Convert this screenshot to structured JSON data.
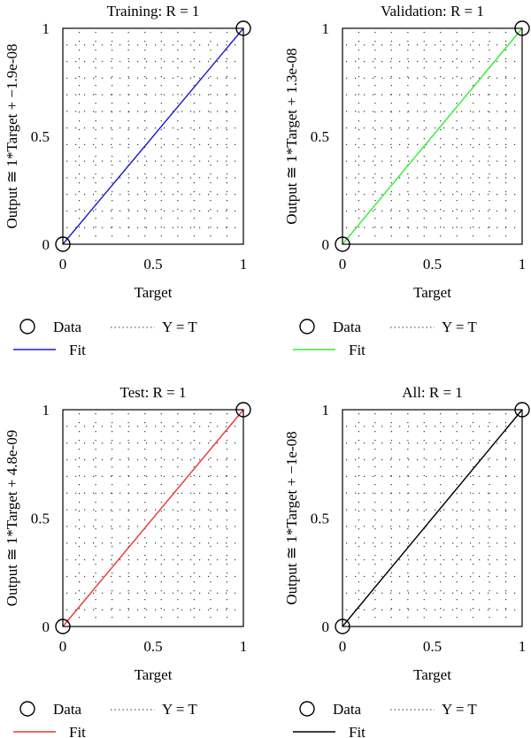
{
  "chart_data": [
    {
      "type": "scatter",
      "title": "Training: R = 1",
      "xlabel": "Target",
      "ylabel": "Output ≅ 1*Target + −1.9e-08",
      "xlim": [
        0,
        1
      ],
      "ylim": [
        0,
        1
      ],
      "xticks": [
        "0",
        "0.5",
        "1"
      ],
      "yticks": [
        "0",
        "0.5",
        "1"
      ],
      "grid": true,
      "legend": [
        "Data",
        "Y = T",
        "Fit"
      ],
      "legend_placement": "below",
      "fit_color": "#1a1ac8",
      "data_points": [
        {
          "x": 0,
          "y": 0
        },
        {
          "x": 1,
          "y": 1
        }
      ],
      "fit_line": [
        {
          "x": 0,
          "y": 0
        },
        {
          "x": 1,
          "y": 1
        }
      ],
      "identity_line": [
        {
          "x": 0,
          "y": 0
        },
        {
          "x": 1,
          "y": 1
        }
      ]
    },
    {
      "type": "scatter",
      "title": "Validation: R = 1",
      "xlabel": "Target",
      "ylabel": "Output ≅ 1*Target + 1.3e-08",
      "xlim": [
        0,
        1
      ],
      "ylim": [
        0,
        1
      ],
      "xticks": [
        "0",
        "0.5",
        "1"
      ],
      "yticks": [
        "0",
        "0.5",
        "1"
      ],
      "grid": true,
      "legend": [
        "Data",
        "Y = T",
        "Fit"
      ],
      "legend_placement": "below",
      "fit_color": "#33ee33",
      "data_points": [
        {
          "x": 0,
          "y": 0
        },
        {
          "x": 1,
          "y": 1
        }
      ],
      "fit_line": [
        {
          "x": 0,
          "y": 0
        },
        {
          "x": 1,
          "y": 1
        }
      ],
      "identity_line": [
        {
          "x": 0,
          "y": 0
        },
        {
          "x": 1,
          "y": 1
        }
      ]
    },
    {
      "type": "scatter",
      "title": "Test: R = 1",
      "xlabel": "Target",
      "ylabel": "Output ≅ 1*Target + 4.8e-09",
      "xlim": [
        0,
        1
      ],
      "ylim": [
        0,
        1
      ],
      "xticks": [
        "0",
        "0.5",
        "1"
      ],
      "yticks": [
        "0",
        "0.5",
        "1"
      ],
      "grid": true,
      "legend": [
        "Data",
        "Y = T",
        "Fit"
      ],
      "legend_placement": "below",
      "fit_color": "#ee3333",
      "data_points": [
        {
          "x": 0,
          "y": 0
        },
        {
          "x": 1,
          "y": 1
        }
      ],
      "fit_line": [
        {
          "x": 0,
          "y": 0
        },
        {
          "x": 1,
          "y": 1
        }
      ],
      "identity_line": [
        {
          "x": 0,
          "y": 0
        },
        {
          "x": 1,
          "y": 1
        }
      ]
    },
    {
      "type": "scatter",
      "title": "All: R = 1",
      "xlabel": "Target",
      "ylabel": "Output ≅ 1*Target + −1e-08",
      "xlim": [
        0,
        1
      ],
      "ylim": [
        0,
        1
      ],
      "xticks": [
        "0",
        "0.5",
        "1"
      ],
      "yticks": [
        "0",
        "0.5",
        "1"
      ],
      "grid": true,
      "legend": [
        "Data",
        "Y = T",
        "Fit"
      ],
      "legend_placement": "below",
      "fit_color": "#000000",
      "data_points": [
        {
          "x": 0,
          "y": 0
        },
        {
          "x": 1,
          "y": 1
        }
      ],
      "fit_line": [
        {
          "x": 0,
          "y": 0
        },
        {
          "x": 1,
          "y": 1
        }
      ],
      "identity_line": [
        {
          "x": 0,
          "y": 0
        },
        {
          "x": 1,
          "y": 1
        }
      ]
    }
  ]
}
